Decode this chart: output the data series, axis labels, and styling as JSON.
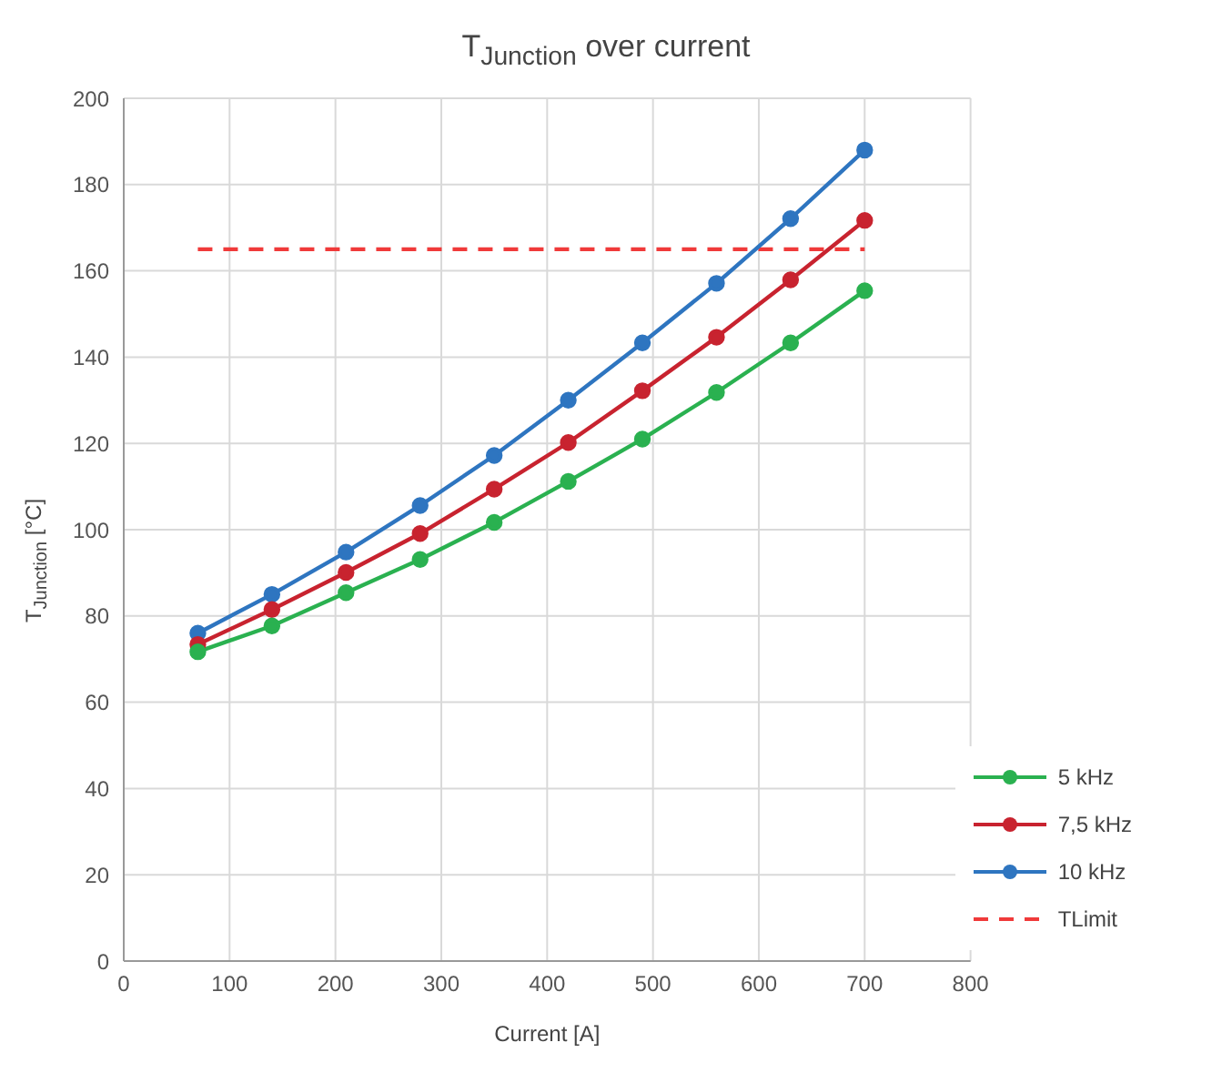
{
  "chart_data": {
    "type": "line",
    "title": "T$_{Junction}$ over current",
    "xlabel": "Current [A]",
    "ylabel": "T$_{Junction}$ [°C]",
    "x": [
      70,
      140,
      210,
      280,
      350,
      420,
      490,
      560,
      630,
      700
    ],
    "series": [
      {
        "name": "5 kHz",
        "color": "#2ab150",
        "values": [
          71.7,
          77.7,
          85.4,
          93.1,
          101.7,
          111.2,
          121.0,
          131.8,
          143.3,
          155.4
        ]
      },
      {
        "name": "7,5 kHz",
        "color": "#c8232f",
        "values": [
          73.4,
          81.5,
          90.1,
          99.1,
          109.4,
          120.2,
          132.2,
          144.6,
          157.9,
          171.7
        ]
      },
      {
        "name": "10 kHz",
        "color": "#2e75c0",
        "values": [
          76.0,
          85.0,
          94.8,
          105.6,
          117.2,
          130.0,
          143.3,
          157.1,
          172.1,
          188.0
        ]
      },
      {
        "name": "TLimit",
        "color": "#f03a3a",
        "x": [
          70,
          700
        ],
        "values": [
          165,
          165
        ],
        "marker": "none",
        "line_style": "dashed"
      }
    ],
    "xlim": [
      0,
      800
    ],
    "xticks": [
      0,
      100,
      200,
      300,
      400,
      500,
      600,
      700,
      800
    ],
    "ylim": [
      0,
      200
    ],
    "yticks": [
      0,
      20,
      40,
      60,
      80,
      100,
      120,
      140,
      160,
      180,
      200
    ],
    "grid": true,
    "legend": "bottom right",
    "marker": "circle",
    "line_style": "solid"
  }
}
